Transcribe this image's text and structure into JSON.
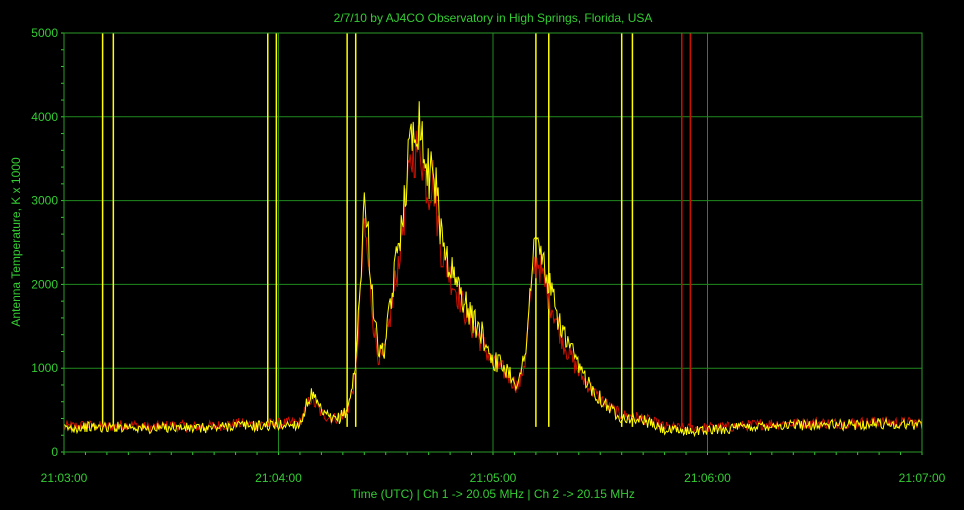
{
  "chart_data": {
    "type": "line",
    "title": "2/7/10  by  AJ4CO Observatory  in  High Springs, Florida, USA",
    "xlabel": "Time (UTC)  |  Ch 1 -> 20.05 MHz  |  Ch 2 -> 20.15 MHz",
    "ylabel": "Antenna Temperature, K x 1000",
    "x_unit": "minutes after 21:03:00 UTC",
    "xlim": [
      0,
      4
    ],
    "ylim": [
      0,
      5000
    ],
    "x_ticks": [
      {
        "v": 0,
        "label": "21:03:00"
      },
      {
        "v": 1,
        "label": "21:04:00"
      },
      {
        "v": 2,
        "label": "21:05:00"
      },
      {
        "v": 3,
        "label": "21:06:00"
      },
      {
        "v": 4,
        "label": "21:07:00"
      }
    ],
    "y_ticks": [
      {
        "v": 0,
        "label": "0"
      },
      {
        "v": 1000,
        "label": "1000"
      },
      {
        "v": 2000,
        "label": "2000"
      },
      {
        "v": 3000,
        "label": "3000"
      },
      {
        "v": 4000,
        "label": "4000"
      },
      {
        "v": 5000,
        "label": "5000"
      }
    ],
    "grid": true,
    "background": "#000000",
    "grid_color": "#1f8a1f",
    "text_color": "#33cc33",
    "series": [
      {
        "color": "#ffff00",
        "x": [
          0,
          0.1,
          0.2,
          0.3,
          0.4,
          0.5,
          0.6,
          0.7,
          0.8,
          0.9,
          1.0,
          1.1,
          1.15,
          1.2,
          1.25,
          1.28,
          1.32,
          1.36,
          1.38,
          1.4,
          1.42,
          1.44,
          1.46,
          1.48,
          1.5,
          1.52,
          1.55,
          1.58,
          1.62,
          1.66,
          1.68,
          1.7,
          1.72,
          1.74,
          1.76,
          1.8,
          1.85,
          1.9,
          1.95,
          2.0,
          2.03,
          2.06,
          2.09,
          2.12,
          2.15,
          2.17,
          2.19,
          2.21,
          2.24,
          2.28,
          2.33,
          2.4,
          2.48,
          2.55,
          2.6,
          2.65,
          2.7,
          2.8,
          2.9,
          3.0,
          3.1,
          3.2,
          3.3,
          3.4,
          3.5,
          3.6,
          3.7,
          3.8,
          3.9,
          4.0
        ],
        "y": [
          280,
          300,
          290,
          310,
          270,
          300,
          280,
          290,
          320,
          310,
          320,
          330,
          700,
          480,
          380,
          400,
          500,
          1000,
          2000,
          3000,
          2500,
          1800,
          1300,
          1150,
          1300,
          1700,
          2300,
          2900,
          3800,
          4000,
          3500,
          3300,
          3500,
          3000,
          2600,
          2200,
          1900,
          1600,
          1400,
          1100,
          1050,
          1000,
          900,
          800,
          1200,
          1800,
          2400,
          2500,
          2200,
          1800,
          1400,
          1000,
          700,
          500,
          420,
          400,
          380,
          260,
          250,
          260,
          280,
          300,
          320,
          320,
          330,
          320,
          330,
          340,
          330,
          330
        ]
      },
      {
        "color": "#cc1100",
        "x": [
          0,
          0.1,
          0.2,
          0.3,
          0.4,
          0.5,
          0.6,
          0.7,
          0.8,
          0.9,
          1.0,
          1.1,
          1.15,
          1.2,
          1.25,
          1.28,
          1.32,
          1.36,
          1.38,
          1.4,
          1.42,
          1.44,
          1.46,
          1.48,
          1.5,
          1.52,
          1.55,
          1.58,
          1.62,
          1.66,
          1.68,
          1.7,
          1.72,
          1.74,
          1.76,
          1.8,
          1.85,
          1.9,
          1.95,
          2.0,
          2.03,
          2.06,
          2.09,
          2.12,
          2.15,
          2.17,
          2.19,
          2.21,
          2.24,
          2.28,
          2.33,
          2.4,
          2.48,
          2.55,
          2.6,
          2.65,
          2.7,
          2.8,
          2.9,
          3.0,
          3.1,
          3.2,
          3.3,
          3.4,
          3.5,
          3.6,
          3.7,
          3.8,
          3.9,
          4.0
        ],
        "y": [
          300,
          320,
          300,
          330,
          290,
          320,
          300,
          310,
          340,
          330,
          340,
          350,
          650,
          460,
          400,
          420,
          480,
          900,
          1800,
          2700,
          2200,
          1600,
          1200,
          1100,
          1250,
          1600,
          2100,
          2700,
          3500,
          3700,
          3300,
          3100,
          3300,
          2800,
          2400,
          2100,
          1800,
          1500,
          1300,
          1050,
          1000,
          950,
          850,
          780,
          1100,
          1700,
          2200,
          2300,
          2000,
          1700,
          1300,
          950,
          680,
          520,
          440,
          420,
          400,
          300,
          280,
          290,
          300,
          320,
          340,
          340,
          350,
          340,
          350,
          360,
          350,
          350
        ]
      }
    ],
    "spikes": [
      {
        "x": 0.18,
        "color": "#ffff00"
      },
      {
        "x": 0.23,
        "color": "#ffff00"
      },
      {
        "x": 0.95,
        "color": "#ffff00"
      },
      {
        "x": 0.99,
        "color": "#ffff00"
      },
      {
        "x": 1.32,
        "color": "#ffff00"
      },
      {
        "x": 1.36,
        "color": "#ffff00"
      },
      {
        "x": 2.2,
        "color": "#ffff00"
      },
      {
        "x": 2.26,
        "color": "#ffff00"
      },
      {
        "x": 2.6,
        "color": "#ffff00"
      },
      {
        "x": 2.65,
        "color": "#ffff00"
      },
      {
        "x": 2.88,
        "color": "#cc1100"
      },
      {
        "x": 2.92,
        "color": "#cc1100"
      }
    ]
  }
}
